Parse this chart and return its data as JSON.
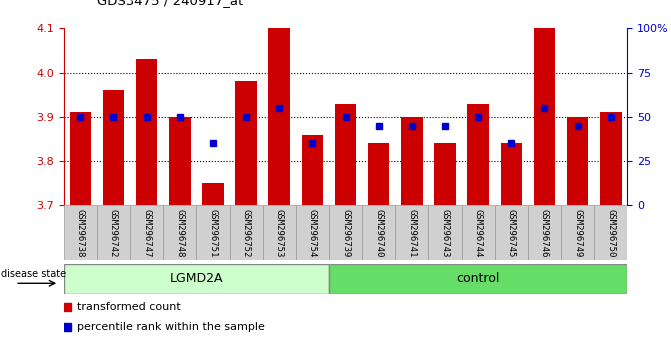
{
  "title": "GDS3475 / 240917_at",
  "samples": [
    "GSM296738",
    "GSM296742",
    "GSM296747",
    "GSM296748",
    "GSM296751",
    "GSM296752",
    "GSM296753",
    "GSM296754",
    "GSM296739",
    "GSM296740",
    "GSM296741",
    "GSM296743",
    "GSM296744",
    "GSM296745",
    "GSM296746",
    "GSM296749",
    "GSM296750"
  ],
  "bar_values": [
    3.91,
    3.96,
    4.03,
    3.9,
    3.75,
    3.98,
    4.1,
    3.86,
    3.93,
    3.84,
    3.9,
    3.84,
    3.93,
    3.84,
    4.1,
    3.9,
    3.91
  ],
  "percentile_values": [
    50,
    50,
    50,
    50,
    35,
    50,
    55,
    35,
    50,
    45,
    45,
    45,
    50,
    35,
    55,
    45,
    50
  ],
  "bar_color": "#cc0000",
  "dot_color": "#0000cc",
  "ylim_left": [
    3.7,
    4.1
  ],
  "ylim_right": [
    0,
    100
  ],
  "yticks_left": [
    3.7,
    3.8,
    3.9,
    4.0,
    4.1
  ],
  "yticks_right": [
    0,
    25,
    50,
    75,
    100
  ],
  "ytick_labels_right": [
    "0",
    "25",
    "50",
    "75",
    "100%"
  ],
  "group_labels": [
    "LGMD2A",
    "control"
  ],
  "lgmd2a_count": 8,
  "control_count": 9,
  "group_colors": [
    "#ccffcc",
    "#66dd66"
  ],
  "legend_items": [
    "transformed count",
    "percentile rank within the sample"
  ],
  "legend_colors": [
    "#cc0000",
    "#0000cc"
  ],
  "disease_state_label": "disease state",
  "background_color": "#ffffff",
  "label_area_color": "#d0d0d0",
  "grid_yticks": [
    3.8,
    3.9,
    4.0
  ]
}
